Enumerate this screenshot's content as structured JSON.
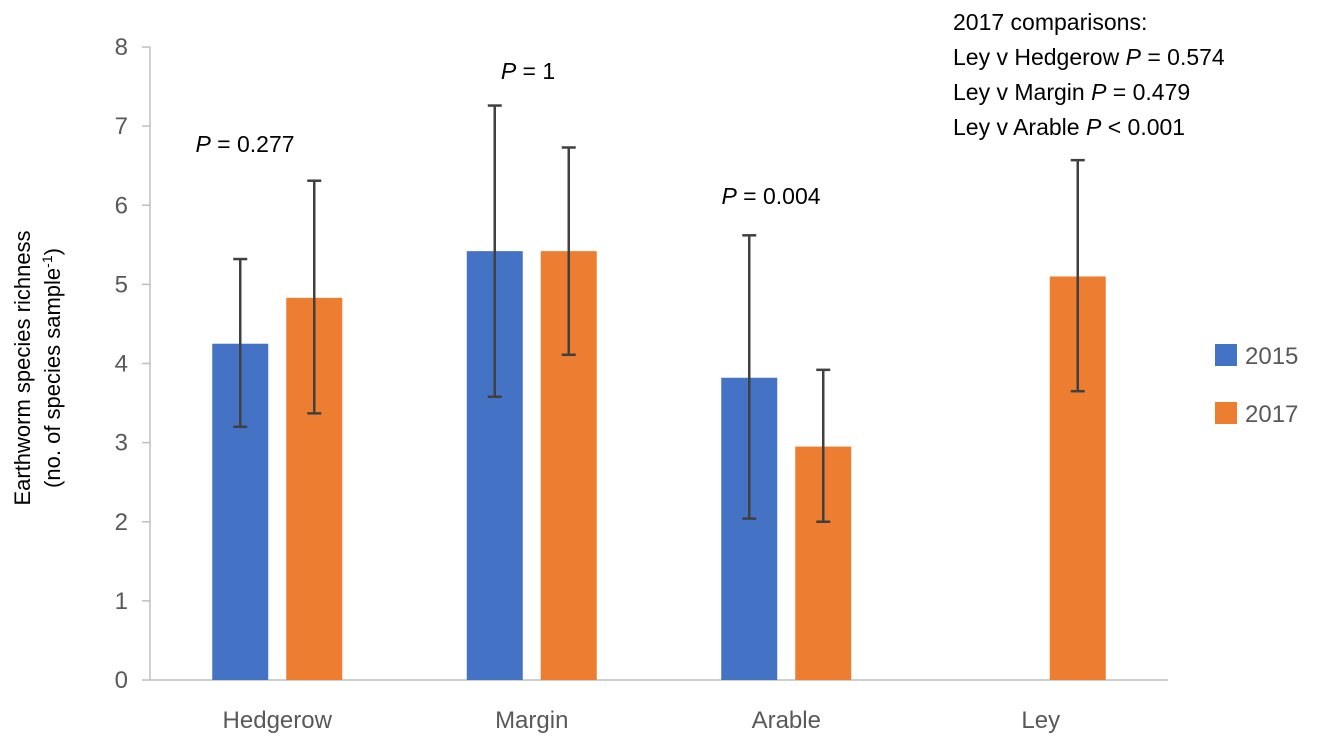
{
  "chart_data": {
    "type": "bar",
    "categories": [
      "Hedgerow",
      "Margin",
      "Arable",
      "Ley"
    ],
    "series": [
      {
        "name": "2015",
        "color": "#4472C4",
        "values": [
          4.25,
          5.42,
          3.82,
          null
        ],
        "error_low": [
          3.2,
          3.58,
          2.04,
          null
        ],
        "error_high": [
          5.32,
          7.26,
          5.62,
          null
        ]
      },
      {
        "name": "2017",
        "color": "#ED7D31",
        "values": [
          4.83,
          5.42,
          2.95,
          5.1
        ],
        "error_low": [
          3.37,
          4.11,
          2.0,
          3.65
        ],
        "error_high": [
          6.31,
          6.73,
          3.92,
          6.57
        ]
      }
    ],
    "ylim": [
      0,
      8
    ],
    "yticks": [
      "0",
      "1",
      "2",
      "3",
      "4",
      "5",
      "6",
      "7",
      "8"
    ],
    "ylabel_line1": "Earthworm species richness",
    "ylabel_line2_prefix": "(no. of species sample",
    "ylabel_line2_sup": "-1",
    "ylabel_line2_suffix": ")",
    "legend_position": "right",
    "annotations": {
      "hedgerow": {
        "p": "P",
        "rest": " = 0.277"
      },
      "margin": {
        "p": "P",
        "rest": " = 1"
      },
      "arable": {
        "p": "P",
        "rest": " = 0.004"
      },
      "comparisons_title": "2017 comparisons:",
      "comparisons": [
        {
          "prefix": "Ley v Hedgerow ",
          "p": "P",
          "rest": " = 0.574"
        },
        {
          "prefix": "Ley v Margin ",
          "p": "P",
          "rest": " = 0.479"
        },
        {
          "prefix": "Ley v Arable ",
          "p": "P",
          "rest": " < 0.001"
        }
      ]
    }
  }
}
